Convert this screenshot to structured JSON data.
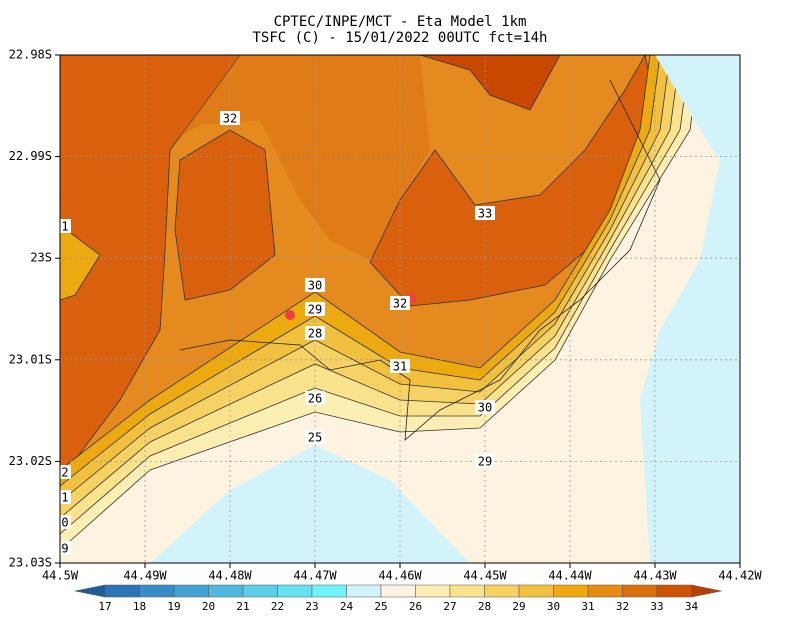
{
  "header": {
    "title": "CPTEC/INPE/MCT -  Eta Model 1km",
    "subtitle": "TSFC (C) - 15/01/2022 00UTC fct=14h"
  },
  "axes": {
    "y_labels": [
      "22.98S",
      "22.99S",
      "23S",
      "23.01S",
      "23.02S",
      "23.03S"
    ],
    "x_labels": [
      "44.5W",
      "44.49W",
      "44.48W",
      "44.47W",
      "44.46W",
      "44.45W",
      "44.44W",
      "44.43W",
      "44.42W"
    ]
  },
  "contour_labels": [
    "32",
    "1",
    "33",
    "30",
    "29",
    "32",
    "28",
    "31",
    "26",
    "30",
    "25",
    "29",
    "2",
    "1",
    "0",
    "9"
  ],
  "colorbar": {
    "labels": [
      17,
      18,
      19,
      20,
      21,
      22,
      23,
      24,
      25,
      26,
      27,
      28,
      29,
      30,
      31,
      32,
      33,
      34
    ],
    "colors": [
      "#1f5c9c",
      "#2a74b4",
      "#3a8cc6",
      "#45a3d4",
      "#50b9df",
      "#5bcfe9",
      "#64e2f0",
      "#70f2f8",
      "#d3f3fa",
      "#fdf3e0",
      "#fdeeb3",
      "#fbe28c",
      "#f6d265",
      "#f1c03e",
      "#ecaa10",
      "#e68c10",
      "#dc6e0c",
      "#cc5400",
      "#b83e00"
    ]
  }
}
